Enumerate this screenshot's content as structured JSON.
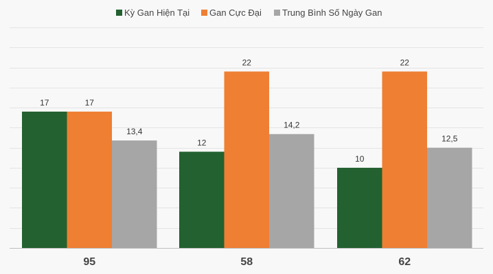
{
  "chart_data": {
    "type": "bar",
    "categories": [
      "95",
      "58",
      "62"
    ],
    "series": [
      {
        "name": "Kỳ Gan Hiện Tại",
        "color": "#236130",
        "values": [
          17,
          12,
          10
        ],
        "labels": [
          "17",
          "12",
          "10"
        ]
      },
      {
        "name": "Gan Cực Đại",
        "color": "#ee7f33",
        "values": [
          17,
          22,
          22
        ],
        "labels": [
          "17",
          "22",
          "22"
        ]
      },
      {
        "name": "Trung Bình Số Ngày Gan",
        "color": "#a6a6a6",
        "values": [
          13.4,
          14.2,
          12.5
        ],
        "labels": [
          "13,4",
          "14,2",
          "12,5"
        ]
      }
    ],
    "ylim": [
      0,
      27.5
    ],
    "grid": true,
    "legend": "top-center",
    "title": "",
    "xlabel": "",
    "ylabel": ""
  },
  "colors": {
    "background": "#f8f8f8",
    "grid": "#e4e4e4",
    "axis": "#bdbdbd"
  }
}
